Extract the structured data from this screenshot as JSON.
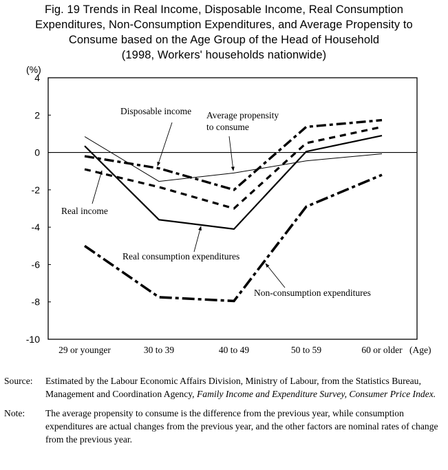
{
  "title_lines": [
    "Fig. 19  Trends in Real Income, Disposable Income, Real Consumption",
    "Expenditures, Non-Consumption Expenditures, and Average Propensity to",
    "Consume based on the Age Group of the Head of Household",
    "(1998, Workers'  households nationwide)"
  ],
  "chart_data": {
    "type": "line",
    "title": "Fig. 19  Trends in Real Income, Disposable Income, Real Consumption Expenditures, Non-Consumption Expenditures, and Average Propensity to Consume based on the Age Group of the Head of Household (1998, Workers' households nationwide)",
    "xlabel": "(Age)",
    "ylabel": "(%)",
    "ylim": [
      -10,
      4
    ],
    "yticks": [
      4,
      2,
      0,
      -2,
      -4,
      -6,
      -8,
      -10
    ],
    "ytick_labels": [
      "4",
      "2",
      "0",
      "-2",
      "-4",
      "-6",
      "-8",
      "-10"
    ],
    "categories": [
      "29 or younger",
      "30 to 39",
      "40 to 49",
      "50 to 59",
      "60 or older"
    ],
    "grid": false,
    "zero_line": true,
    "legend": "inline annotations with arrows",
    "series": [
      {
        "name": "Real income",
        "style": "dashed",
        "values": [
          -0.9,
          -1.85,
          -3.0,
          0.5,
          1.37
        ]
      },
      {
        "name": "Disposable income",
        "style": "dash-dot",
        "values": [
          -0.2,
          -0.85,
          -2.0,
          1.37,
          1.73
        ]
      },
      {
        "name": "Real consumption expenditures",
        "style": "solid",
        "values": [
          0.35,
          -3.6,
          -4.1,
          0.05,
          0.9
        ]
      },
      {
        "name": "Non-consumption expenditures",
        "style": "dash-dot-heavy",
        "values": [
          -5.0,
          -7.75,
          -7.95,
          -2.9,
          -1.2
        ]
      },
      {
        "name": "Average propensity to consume",
        "style": "thin",
        "values": [
          0.85,
          -1.55,
          -1.1,
          -0.45,
          -0.07
        ]
      }
    ],
    "annotations": [
      {
        "lines": [
          "Disposable income"
        ],
        "series": "Disposable income"
      },
      {
        "lines": [
          "Average propensity",
          "to consume"
        ],
        "series": "Average propensity to consume"
      },
      {
        "lines": [
          "Real income"
        ],
        "series": "Real income"
      },
      {
        "lines": [
          "Real consumption expenditures"
        ],
        "series": "Real consumption expenditures"
      },
      {
        "lines": [
          "Non-consumption expenditures"
        ],
        "series": "Non-consumption expenditures"
      }
    ]
  },
  "notes": {
    "source_label": "Source:",
    "source_text": "Estimated by the Labour Economic Affairs Division, Ministry of Labour, from the Statistics Bureau, Management and Coordination Agency, ",
    "source_italic": "Family Income and Expenditure Survey, Consumer Price Index.",
    "note_label": "Note:",
    "note_text": "The average propensity to consume is the difference from the previous year, while consumption expenditures are actual changes from the previous year, and the other factors are nominal rates of change from the previous year."
  }
}
